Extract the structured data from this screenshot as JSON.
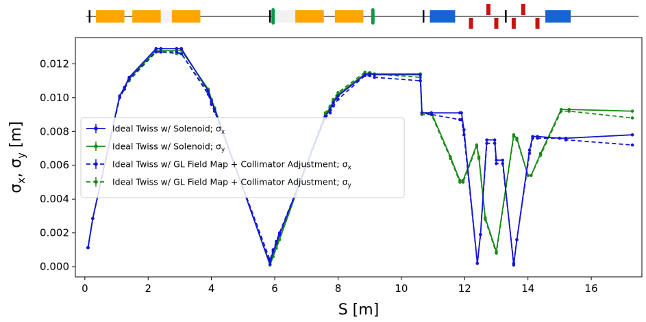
{
  "chart_data": {
    "type": "line",
    "xlabel": "S [m]",
    "ylabel": "σx, σy [m]",
    "xlim": [
      -0.3,
      17.6
    ],
    "ylim": [
      -0.0006,
      0.01355
    ],
    "x_ticks": [
      0,
      2,
      4,
      6,
      8,
      10,
      12,
      14,
      16
    ],
    "y_ticks": [
      0.0,
      0.002,
      0.004,
      0.006,
      0.008,
      0.01,
      0.012
    ],
    "y_tick_labels": [
      "0.000",
      "0.002",
      "0.004",
      "0.006",
      "0.008",
      "0.010",
      "0.012"
    ],
    "grid": false,
    "legend_position": "center-left",
    "series": [
      {
        "name": "Ideal Twiss w/ Solenoid; σx",
        "legend": {
          "main": "Ideal Twiss w/ Solenoid; σ",
          "sub": "x"
        },
        "color": "#1515d6",
        "linestyle": "solid",
        "points": [
          [
            0.1,
            0.00113
          ],
          [
            0.25,
            0.00285
          ],
          [
            1.1,
            0.0101
          ],
          [
            1.25,
            0.0106
          ],
          [
            1.4,
            0.0112
          ],
          [
            2.25,
            0.0129
          ],
          [
            2.4,
            0.0129
          ],
          [
            2.9,
            0.0129
          ],
          [
            3.05,
            0.0129
          ],
          [
            3.9,
            0.0104
          ],
          [
            4.0,
            0.0098
          ],
          [
            4.1,
            0.0093
          ],
          [
            5.85,
            0.00015
          ],
          [
            5.95,
            0.0009
          ],
          [
            6.05,
            0.0014
          ],
          [
            6.15,
            0.0019
          ],
          [
            7.6,
            0.0089
          ],
          [
            7.75,
            0.0093
          ],
          [
            7.85,
            0.0097
          ],
          [
            8.0,
            0.0101
          ],
          [
            8.85,
            0.01135
          ],
          [
            9.0,
            0.0114
          ],
          [
            9.15,
            0.01135
          ],
          [
            10.6,
            0.01135
          ],
          [
            10.65,
            0.0091
          ],
          [
            10.95,
            0.0091
          ],
          [
            11.85,
            0.0091
          ],
          [
            11.9,
            0.0091
          ],
          [
            11.98,
            0.0081
          ],
          [
            12.4,
            0.0002
          ],
          [
            12.5,
            0.0019
          ],
          [
            12.7,
            0.0075
          ],
          [
            12.95,
            0.0075
          ],
          [
            13.0,
            0.0063
          ],
          [
            13.2,
            0.0063
          ],
          [
            13.55,
            0.0001
          ],
          [
            13.65,
            0.0016
          ],
          [
            14.05,
            0.0069
          ],
          [
            14.15,
            0.0077
          ],
          [
            14.3,
            0.0077
          ],
          [
            15.0,
            0.0076
          ],
          [
            15.2,
            0.0076
          ],
          [
            17.3,
            0.0078
          ]
        ]
      },
      {
        "name": "Ideal Twiss w/ Solenoid; σy",
        "legend": {
          "main": "Ideal Twiss w/ Solenoid; σ",
          "sub": "y"
        },
        "color": "#1a8a1a",
        "linestyle": "solid",
        "points": [
          [
            0.1,
            0.00113
          ],
          [
            0.25,
            0.00285
          ],
          [
            1.1,
            0.0101
          ],
          [
            1.25,
            0.0106
          ],
          [
            1.4,
            0.0111
          ],
          [
            2.25,
            0.0128
          ],
          [
            2.4,
            0.0128
          ],
          [
            2.9,
            0.0128
          ],
          [
            3.05,
            0.0128
          ],
          [
            3.9,
            0.0105
          ],
          [
            4.0,
            0.0099
          ],
          [
            4.1,
            0.0094
          ],
          [
            5.85,
            0.0001
          ],
          [
            5.95,
            0.0006
          ],
          [
            6.05,
            0.0011
          ],
          [
            6.15,
            0.0016
          ],
          [
            6.65,
            0.0042
          ],
          [
            7.6,
            0.009
          ],
          [
            7.75,
            0.0094
          ],
          [
            7.85,
            0.0098
          ],
          [
            8.0,
            0.0102
          ],
          [
            8.85,
            0.0114
          ],
          [
            9.0,
            0.01145
          ],
          [
            9.15,
            0.0114
          ],
          [
            10.6,
            0.0114
          ],
          [
            10.65,
            0.0091
          ],
          [
            10.95,
            0.0091
          ],
          [
            11.55,
            0.0065
          ],
          [
            11.85,
            0.0051
          ],
          [
            11.95,
            0.0051
          ],
          [
            12.38,
            0.0072
          ],
          [
            12.45,
            0.0065
          ],
          [
            12.65,
            0.0029
          ],
          [
            13.0,
            0.0009
          ],
          [
            13.55,
            0.0078
          ],
          [
            13.65,
            0.0076
          ],
          [
            14.0,
            0.0054
          ],
          [
            14.1,
            0.0054
          ],
          [
            14.4,
            0.0067
          ],
          [
            15.05,
            0.0093
          ],
          [
            15.3,
            0.0093
          ],
          [
            17.3,
            0.0092
          ]
        ]
      },
      {
        "name": "Ideal Twiss w/ GL Field Map + Collimator Adjustment; σx",
        "legend": {
          "main": "Ideal Twiss w/ GL Field Map + Collimator Adjustment; σ",
          "sub": "x"
        },
        "color": "#1515d6",
        "linestyle": "dashed",
        "points": [
          [
            0.1,
            0.00113
          ],
          [
            0.25,
            0.00285
          ],
          [
            1.1,
            0.01
          ],
          [
            1.25,
            0.0105
          ],
          [
            1.4,
            0.0111
          ],
          [
            2.25,
            0.0127
          ],
          [
            2.4,
            0.0127
          ],
          [
            2.9,
            0.0127
          ],
          [
            3.05,
            0.0126
          ],
          [
            3.9,
            0.0102
          ],
          [
            4.0,
            0.0096
          ],
          [
            4.1,
            0.0092
          ],
          [
            5.85,
            0.0004
          ],
          [
            5.95,
            0.001
          ],
          [
            6.05,
            0.0015
          ],
          [
            6.15,
            0.002
          ],
          [
            7.6,
            0.0088
          ],
          [
            7.75,
            0.0091
          ],
          [
            7.85,
            0.0095
          ],
          [
            8.0,
            0.0099
          ],
          [
            8.85,
            0.0113
          ],
          [
            9.0,
            0.0113
          ],
          [
            9.15,
            0.0112
          ],
          [
            10.6,
            0.011
          ],
          [
            10.65,
            0.0091
          ],
          [
            10.95,
            0.009
          ],
          [
            11.85,
            0.0087
          ],
          [
            11.9,
            0.0087
          ],
          [
            11.98,
            0.0078
          ],
          [
            12.4,
            0.0002
          ],
          [
            12.5,
            0.0019
          ],
          [
            12.7,
            0.0073
          ],
          [
            12.95,
            0.0073
          ],
          [
            13.0,
            0.0061
          ],
          [
            13.2,
            0.0061
          ],
          [
            13.55,
            0.0002
          ],
          [
            13.65,
            0.0016
          ],
          [
            14.05,
            0.0067
          ],
          [
            14.15,
            0.0076
          ],
          [
            14.3,
            0.0076
          ],
          [
            15.0,
            0.0076
          ],
          [
            15.2,
            0.0075
          ],
          [
            17.3,
            0.0072
          ]
        ]
      },
      {
        "name": "Ideal Twiss w/ GL Field Map + Collimator Adjustment; σy",
        "legend": {
          "main": "Ideal Twiss w/ GL Field Map + Collimator Adjustment; σ",
          "sub": "y"
        },
        "color": "#1a8a1a",
        "linestyle": "dashed",
        "points": [
          [
            0.1,
            0.00113
          ],
          [
            0.25,
            0.00285
          ],
          [
            1.1,
            0.01
          ],
          [
            1.25,
            0.0105
          ],
          [
            1.4,
            0.011
          ],
          [
            2.25,
            0.0127
          ],
          [
            2.4,
            0.0127
          ],
          [
            2.9,
            0.0126
          ],
          [
            3.05,
            0.0126
          ],
          [
            3.9,
            0.0103
          ],
          [
            4.0,
            0.0097
          ],
          [
            4.1,
            0.0092
          ],
          [
            5.85,
            0.0003
          ],
          [
            5.95,
            0.0008
          ],
          [
            6.05,
            0.0013
          ],
          [
            6.15,
            0.0018
          ],
          [
            6.65,
            0.0043
          ],
          [
            7.6,
            0.0091
          ],
          [
            7.75,
            0.0095
          ],
          [
            7.85,
            0.0099
          ],
          [
            8.0,
            0.0103
          ],
          [
            8.85,
            0.0115
          ],
          [
            9.0,
            0.01148
          ],
          [
            9.15,
            0.0114
          ],
          [
            10.6,
            0.0112
          ],
          [
            10.65,
            0.009
          ],
          [
            10.95,
            0.009
          ],
          [
            11.55,
            0.0064
          ],
          [
            11.85,
            0.005
          ],
          [
            11.95,
            0.005
          ],
          [
            12.38,
            0.0071
          ],
          [
            12.45,
            0.0064
          ],
          [
            12.65,
            0.0028
          ],
          [
            13.0,
            0.0008
          ],
          [
            13.55,
            0.0077
          ],
          [
            13.65,
            0.0075
          ],
          [
            14.0,
            0.0054
          ],
          [
            14.1,
            0.0054
          ],
          [
            14.4,
            0.0066
          ],
          [
            15.05,
            0.0092
          ],
          [
            15.3,
            0.0092
          ],
          [
            17.3,
            0.0088
          ]
        ]
      }
    ],
    "lattice": {
      "elements": [
        {
          "kind": "marker",
          "s": 0.15
        },
        {
          "kind": "quad",
          "color": "#ffa500",
          "s0": 0.35,
          "s1": 1.25
        },
        {
          "kind": "quad",
          "color": "#ffa500",
          "s0": 1.5,
          "s1": 2.4
        },
        {
          "kind": "drift_box",
          "color": "#f2f2f2",
          "s0": 2.4,
          "s1": 2.75
        },
        {
          "kind": "quad",
          "color": "#ffa500",
          "s0": 2.75,
          "s1": 3.65
        },
        {
          "kind": "marker",
          "s": 5.85
        },
        {
          "kind": "solenoid",
          "color": "#0a9a4a",
          "s": 5.95
        },
        {
          "kind": "drift_box",
          "color": "#f2f2f2",
          "s0": 6.0,
          "s1": 6.65
        },
        {
          "kind": "quad",
          "color": "#ffa500",
          "s0": 6.65,
          "s1": 7.55
        },
        {
          "kind": "quad",
          "color": "#ffa500",
          "s0": 7.9,
          "s1": 8.8
        },
        {
          "kind": "solenoid",
          "color": "#0a9a4a",
          "s": 9.1
        },
        {
          "kind": "marker",
          "s": 10.7
        },
        {
          "kind": "dipole",
          "color": "#1464d2",
          "s0": 10.9,
          "s1": 11.7
        },
        {
          "kind": "kicker",
          "color": "#cc1111",
          "s": 12.2,
          "dir": "down"
        },
        {
          "kind": "kicker",
          "color": "#cc1111",
          "s": 12.75,
          "dir": "up"
        },
        {
          "kind": "kicker",
          "color": "#cc1111",
          "s": 13.0,
          "dir": "down"
        },
        {
          "kind": "marker",
          "s": 13.3
        },
        {
          "kind": "kicker",
          "color": "#cc1111",
          "s": 13.55,
          "dir": "down"
        },
        {
          "kind": "kicker",
          "color": "#cc1111",
          "s": 13.85,
          "dir": "up"
        },
        {
          "kind": "kicker",
          "color": "#cc1111",
          "s": 14.3,
          "dir": "down"
        },
        {
          "kind": "dipole",
          "color": "#1464d2",
          "s0": 14.55,
          "s1": 15.35
        }
      ]
    }
  }
}
